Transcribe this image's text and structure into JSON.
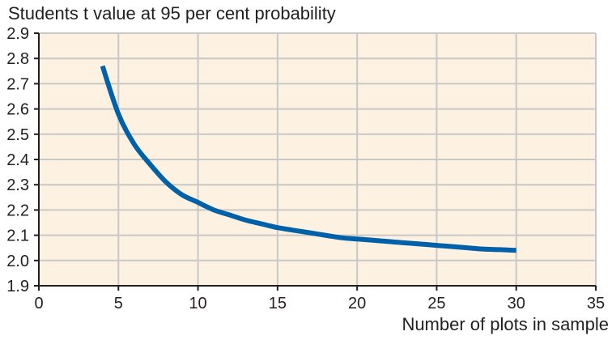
{
  "chart_data": {
    "type": "line",
    "title": "",
    "ylabel": "Students t value at 95 per cent probability",
    "xlabel": "Number of plots in sample",
    "xlim": [
      0,
      35
    ],
    "ylim": [
      1.9,
      2.9
    ],
    "x_ticks": [
      "0",
      "5",
      "10",
      "15",
      "20",
      "25",
      "30",
      "35"
    ],
    "y_ticks": [
      "1.9",
      "2.0",
      "2.1",
      "2.2",
      "2.3",
      "2.4",
      "2.5",
      "2.6",
      "2.7",
      "2.8",
      "2.9"
    ],
    "grid": true,
    "series": [
      {
        "x": [
          4,
          5,
          6,
          7,
          8,
          9,
          10,
          11,
          12,
          13,
          14,
          15,
          16,
          17,
          18,
          19,
          20,
          21,
          22,
          23,
          24,
          25,
          26,
          27,
          28,
          29,
          30
        ],
        "y": [
          2.77,
          2.58,
          2.46,
          2.38,
          2.31,
          2.26,
          2.23,
          2.2,
          2.18,
          2.16,
          2.145,
          2.13,
          2.12,
          2.11,
          2.1,
          2.09,
          2.085,
          2.08,
          2.075,
          2.07,
          2.065,
          2.06,
          2.055,
          2.05,
          2.045,
          2.043,
          2.04
        ]
      }
    ],
    "colors": {
      "plot_background": "#fdf1e1",
      "grid": "#c8c8c8",
      "line": "#0060a8",
      "axis": "#231f20",
      "text": "#231f20"
    }
  }
}
